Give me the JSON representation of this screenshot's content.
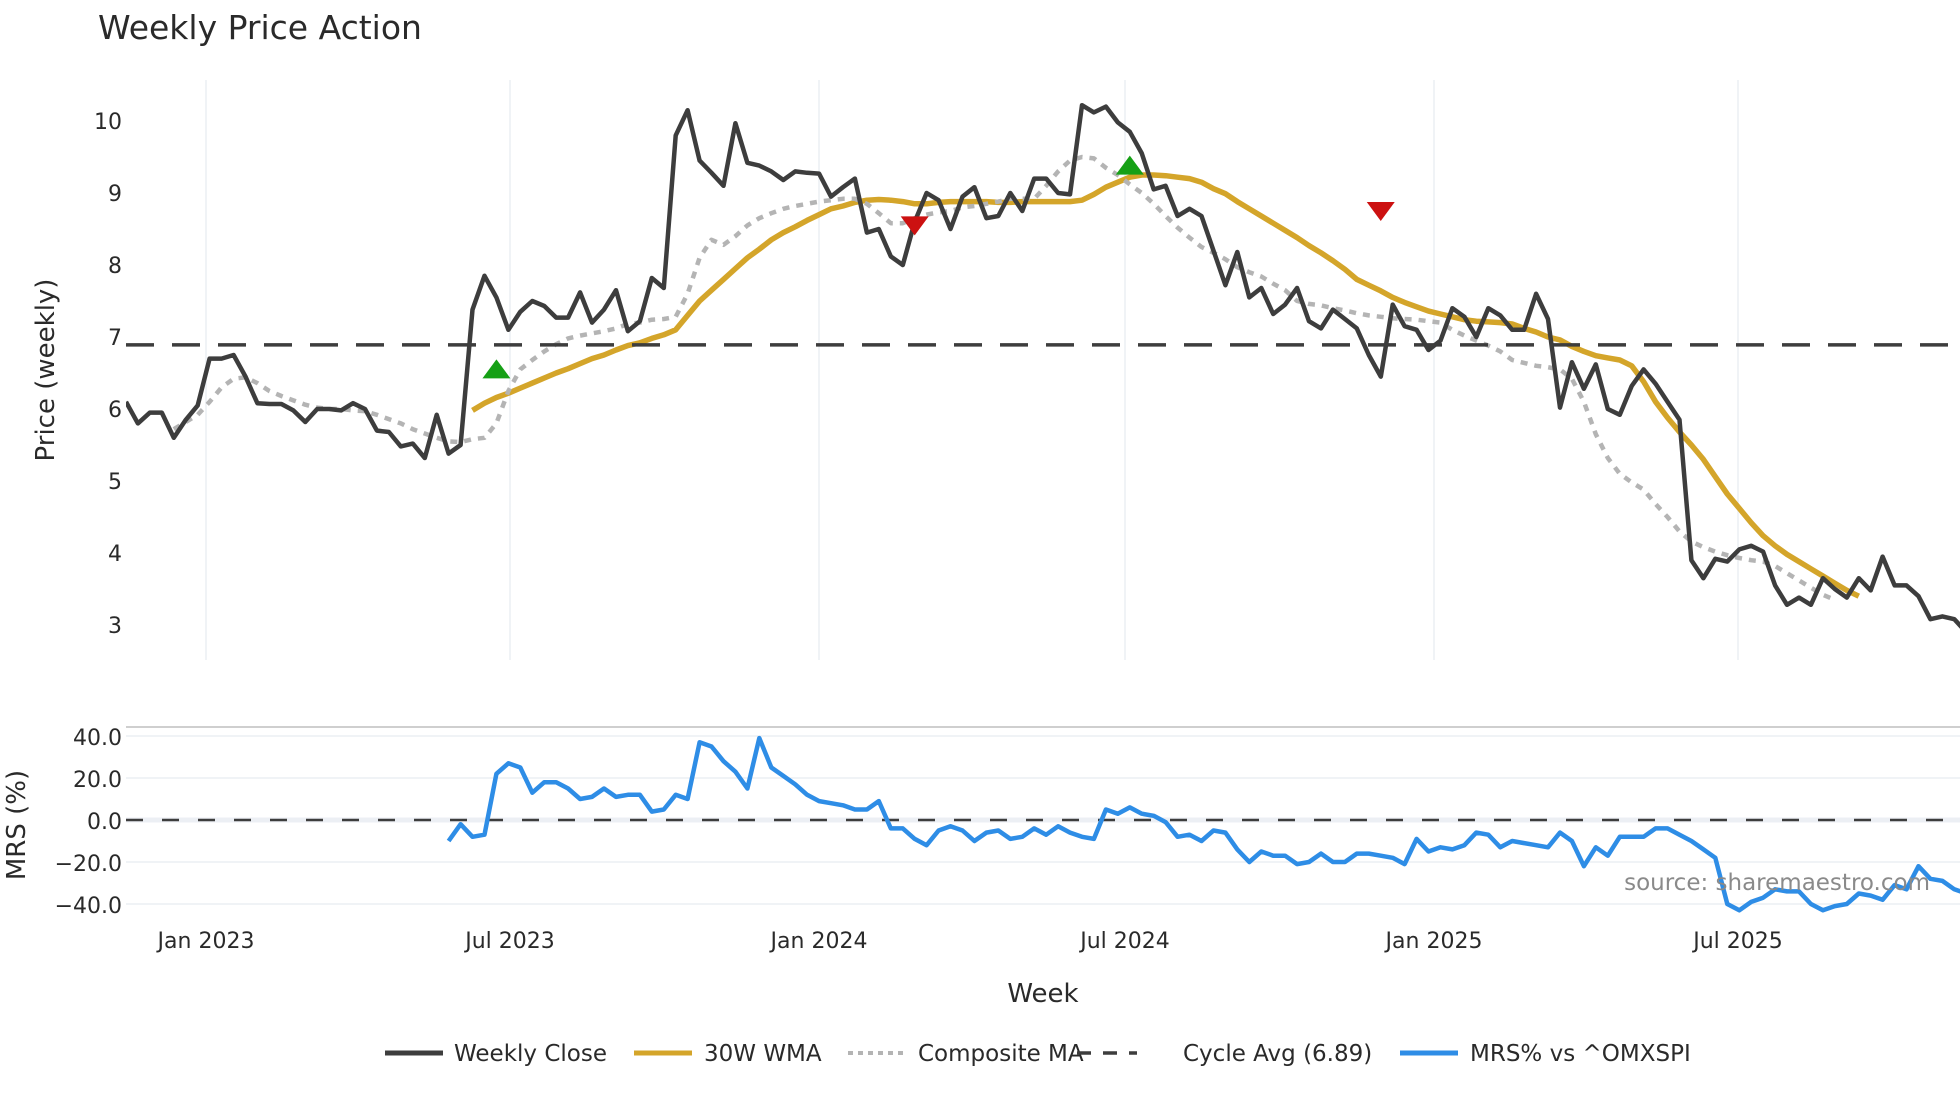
{
  "chart_data": [
    {
      "type": "line",
      "panel": "price",
      "title": "Weekly Price Action",
      "xlabel": "Week",
      "ylabel": "Price (weekly)",
      "ylim": [
        2.5,
        10.65
      ],
      "yticks": [
        3,
        4,
        5,
        6,
        7,
        8,
        9,
        10
      ],
      "xticks": [
        "Jan 2023",
        "Jul 2023",
        "Jan 2024",
        "Jul 2024",
        "Jan 2025",
        "Jul 2025"
      ],
      "grid": true,
      "x_start": "2022-11-13",
      "x_step_days": 7,
      "series": [
        {
          "name": "Weekly Close",
          "color": "#3d3d3d",
          "style": "solid",
          "values": [
            6.1,
            5.8,
            5.95,
            5.95,
            5.6,
            5.85,
            6.05,
            6.7,
            6.7,
            6.75,
            6.45,
            6.08,
            6.07,
            6.07,
            5.98,
            5.82,
            6.0,
            6.0,
            5.98,
            6.08,
            6.0,
            5.7,
            5.68,
            5.48,
            5.52,
            5.32,
            5.92,
            5.38,
            5.5,
            7.38,
            7.85,
            7.55,
            7.1,
            7.35,
            7.5,
            7.43,
            7.27,
            7.27,
            7.62,
            7.2,
            7.38,
            7.65,
            7.08,
            7.22,
            7.82,
            7.68,
            9.8,
            10.15,
            9.45,
            9.28,
            9.1,
            9.97,
            9.42,
            9.38,
            9.3,
            9.18,
            9.3,
            9.28,
            9.27,
            8.95,
            9.08,
            9.2,
            8.45,
            8.5,
            8.12,
            8.0,
            8.6,
            9.0,
            8.9,
            8.5,
            8.95,
            9.08,
            8.65,
            8.68,
            9.0,
            8.75,
            9.2,
            9.2,
            9.0,
            8.98,
            10.22,
            10.12,
            10.2,
            9.98,
            9.85,
            9.55,
            9.05,
            9.1,
            8.68,
            8.78,
            8.68,
            8.2,
            7.72,
            8.18,
            7.55,
            7.68,
            7.32,
            7.45,
            7.68,
            7.22,
            7.12,
            7.38,
            7.25,
            7.12,
            6.75,
            6.45,
            7.45,
            7.15,
            7.1,
            6.82,
            6.95,
            7.4,
            7.28,
            7.0,
            7.4,
            7.3,
            7.1,
            7.1,
            7.6,
            7.25,
            6.02,
            6.65,
            6.28,
            6.62,
            6.0,
            5.92,
            6.32,
            6.55,
            6.35,
            6.1,
            5.85,
            3.9,
            3.65,
            3.92,
            3.88,
            4.05,
            4.1,
            4.02,
            3.55,
            3.28,
            3.38,
            3.28,
            3.65,
            3.5,
            3.38,
            3.65,
            3.48,
            3.95,
            3.55,
            3.55,
            3.4,
            3.08,
            3.12,
            3.08,
            2.9,
            2.98,
            2.87
          ]
        },
        {
          "name": "30W WMA",
          "color": "#d4a52a",
          "style": "solid",
          "start_index": 29,
          "values": [
            5.98,
            6.08,
            6.16,
            6.22,
            6.29,
            6.36,
            6.43,
            6.5,
            6.56,
            6.63,
            6.7,
            6.75,
            6.82,
            6.88,
            6.92,
            6.98,
            7.03,
            7.1,
            7.3,
            7.5,
            7.65,
            7.8,
            7.95,
            8.1,
            8.22,
            8.35,
            8.45,
            8.53,
            8.62,
            8.7,
            8.78,
            8.82,
            8.87,
            8.9,
            8.91,
            8.9,
            8.88,
            8.85,
            8.85,
            8.87,
            8.88,
            8.88,
            8.88,
            8.88,
            8.87,
            8.87,
            8.88,
            8.88,
            8.88,
            8.88,
            8.88,
            8.9,
            8.98,
            9.08,
            9.15,
            9.22,
            9.25,
            9.25,
            9.24,
            9.22,
            9.2,
            9.15,
            9.06,
            8.99,
            8.88,
            8.78,
            8.68,
            8.58,
            8.48,
            8.38,
            8.27,
            8.17,
            8.06,
            7.94,
            7.8,
            7.72,
            7.64,
            7.55,
            7.48,
            7.42,
            7.36,
            7.32,
            7.28,
            7.24,
            7.22,
            7.21,
            7.2,
            7.18,
            7.12,
            7.07,
            7.0,
            6.96,
            6.87,
            6.8,
            6.74,
            6.71,
            6.68,
            6.6,
            6.38,
            6.1,
            5.88,
            5.68,
            5.5,
            5.3,
            5.06,
            4.82,
            4.62,
            4.42,
            4.24,
            4.1,
            3.98,
            3.88,
            3.78,
            3.68,
            3.58,
            3.48,
            3.4
          ]
        },
        {
          "name": "Composite MA",
          "color": "#b4b4b4",
          "style": "dotted",
          "start_index": 4,
          "values": [
            5.72,
            5.82,
            5.92,
            6.1,
            6.3,
            6.42,
            6.44,
            6.36,
            6.25,
            6.18,
            6.12,
            6.06,
            6.02,
            6.0,
            6.0,
            5.98,
            5.97,
            5.92,
            5.86,
            5.8,
            5.72,
            5.66,
            5.6,
            5.55,
            5.54,
            5.58,
            5.6,
            5.8,
            6.25,
            6.55,
            6.68,
            6.8,
            6.9,
            6.98,
            7.02,
            7.05,
            7.08,
            7.12,
            7.18,
            7.2,
            7.24,
            7.25,
            7.28,
            7.6,
            8.1,
            8.35,
            8.28,
            8.4,
            8.55,
            8.65,
            8.72,
            8.78,
            8.82,
            8.85,
            8.88,
            8.9,
            8.92,
            8.92,
            8.85,
            8.72,
            8.58,
            8.58,
            8.65,
            8.7,
            8.73,
            8.75,
            8.8,
            8.82,
            8.85,
            8.88,
            8.92,
            8.92,
            8.92,
            9.1,
            9.3,
            9.45,
            9.5,
            9.48,
            9.35,
            9.25,
            9.12,
            9.0,
            8.85,
            8.68,
            8.52,
            8.38,
            8.25,
            8.17,
            8.08,
            7.97,
            7.9,
            7.84,
            7.74,
            7.65,
            7.5,
            7.46,
            7.44,
            7.4,
            7.37,
            7.33,
            7.3,
            7.28,
            7.26,
            7.25,
            7.24,
            7.22,
            7.2,
            7.1,
            7.02,
            6.95,
            6.88,
            6.8,
            6.68,
            6.64,
            6.6,
            6.58,
            6.55,
            6.42,
            6.1,
            5.65,
            5.32,
            5.1,
            4.98,
            4.88,
            4.68,
            4.5,
            4.3,
            4.16,
            4.08,
            4.02,
            3.97,
            3.93,
            3.9,
            3.88,
            3.82,
            3.72,
            3.62,
            3.52,
            3.42,
            3.35
          ]
        },
        {
          "name": "Cycle Avg (6.89)",
          "color": "#3d3d3d",
          "style": "dashed",
          "constant": 6.89
        }
      ],
      "markers": [
        {
          "type": "buy",
          "shape": "triangle-up",
          "color": "#16a016",
          "date_index": 31,
          "y": 6.55
        },
        {
          "type": "sell",
          "shape": "triangle-down",
          "color": "#cc1111",
          "date_index": 66,
          "y": 8.55
        },
        {
          "type": "buy",
          "shape": "triangle-up",
          "color": "#16a016",
          "date_index": 84,
          "y": 9.38
        },
        {
          "type": "sell",
          "shape": "triangle-down",
          "color": "#cc1111",
          "date_index": 105,
          "y": 8.75
        }
      ]
    },
    {
      "type": "line",
      "panel": "mrs",
      "ylabel": "MRS (%)",
      "ylim": [
        -49,
        46
      ],
      "yticks": [
        40.0,
        20.0,
        0.0,
        -20.0,
        -40.0
      ],
      "ytick_labels": [
        "40.0",
        "20.0",
        "0.0",
        "−20.0",
        "−40.0"
      ],
      "zero_line": {
        "value": 0,
        "style": "dashed",
        "color": "#3d3d3d"
      },
      "series": [
        {
          "name": "MRS% vs ^OMXSPI",
          "color": "#2e8de6",
          "style": "solid",
          "start_index": 27,
          "values": [
            -10,
            -2,
            -8,
            -7,
            22,
            27,
            25,
            13,
            18,
            18,
            15,
            10,
            11,
            15,
            11,
            12,
            12,
            4,
            5,
            12,
            10,
            37,
            35,
            28,
            23,
            15,
            39,
            25,
            21,
            17,
            12,
            9,
            8,
            7,
            5,
            5,
            9,
            -4,
            -4,
            -9,
            -12,
            -5,
            -3,
            -5,
            -10,
            -6,
            -5,
            -9,
            -8,
            -4,
            -7,
            -3,
            -6,
            -8,
            -9,
            5,
            3,
            6,
            3,
            2,
            -1,
            -8,
            -7,
            -10,
            -5,
            -6,
            -14,
            -20,
            -15,
            -17,
            -17,
            -21,
            -20,
            -16,
            -20,
            -20,
            -16,
            -16,
            -17,
            -18,
            -21,
            -9,
            -15,
            -13,
            -14,
            -12,
            -6,
            -7,
            -13,
            -10,
            -11,
            -12,
            -13,
            -6,
            -10,
            -22,
            -13,
            -17,
            -8,
            -8,
            -8,
            -4,
            -4,
            -7,
            -10,
            -14,
            -18,
            -40,
            -43,
            -39,
            -37,
            -33,
            -34,
            -34,
            -40,
            -43,
            -41,
            -40,
            -35,
            -36,
            -38,
            -31,
            -33,
            -22,
            -28,
            -29,
            -33,
            -35,
            -35,
            -34,
            -37,
            -33,
            -35
          ]
        }
      ]
    }
  ],
  "header": {
    "title": "Weekly Price Action"
  },
  "axes": {
    "price_ylabel": "Price (weekly)",
    "mrs_ylabel": "MRS (%)",
    "xlabel": "Week",
    "price_ticks": [
      "10",
      "9",
      "8",
      "7",
      "6",
      "5",
      "4",
      "3"
    ],
    "mrs_ticks": [
      "40.0",
      "20.0",
      "0.0",
      "−20.0",
      "−40.0"
    ],
    "x_ticks": [
      "Jan 2023",
      "Jul 2023",
      "Jan 2024",
      "Jul 2024",
      "Jan 2025",
      "Jul 2025"
    ]
  },
  "legend": {
    "items": [
      {
        "label": "Weekly Close",
        "color": "#3d3d3d",
        "style": "solid"
      },
      {
        "label": "30W WMA",
        "color": "#d4a52a",
        "style": "solid"
      },
      {
        "label": "Composite MA",
        "color": "#b4b4b4",
        "style": "dotted"
      },
      {
        "label": "Cycle Avg (6.89)",
        "color": "#3d3d3d",
        "style": "dashed"
      },
      {
        "label": "MRS% vs ^OMXSPI",
        "color": "#2e8de6",
        "style": "solid"
      }
    ]
  },
  "annotation": {
    "source": "source: sharemaestro.com"
  }
}
